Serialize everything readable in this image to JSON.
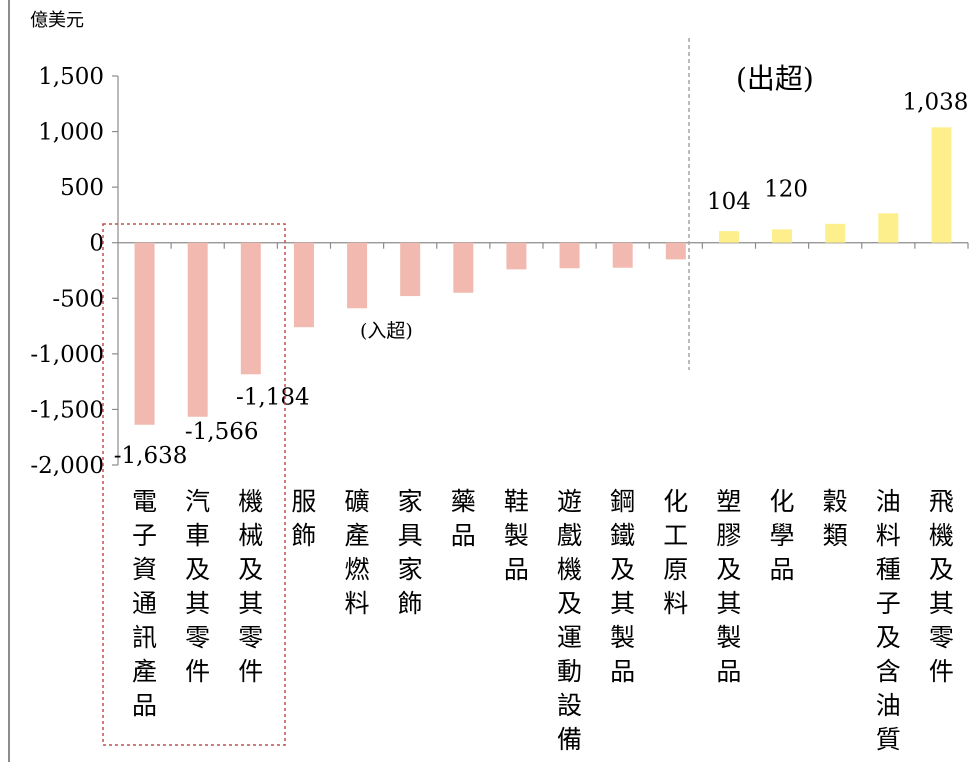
{
  "chart_data": {
    "type": "bar",
    "ylabel": "億美元",
    "ylim": [
      -2000,
      1500
    ],
    "yticks": [
      1500,
      1000,
      500,
      0,
      -500,
      -1000,
      -1500,
      -2000
    ],
    "ytick_labels": [
      "1,500",
      "1,000",
      "500",
      "0",
      "-500",
      "-1,000",
      "-1,500",
      "-2,000"
    ],
    "grid": false,
    "categories": [
      "電子資通訊產品",
      "汽車及其零件",
      "機械及其零件",
      "服飾",
      "礦產燃料",
      "家具家飾",
      "藥品",
      "鞋製品",
      "遊戲機及運動設備",
      "鋼鐵及其製品",
      "化工原料",
      "塑膠及其製品",
      "化學品",
      "穀類",
      "油料種子及含油質",
      "飛機及其零件"
    ],
    "values": [
      -1638,
      -1566,
      -1184,
      -760,
      -590,
      -480,
      -450,
      -240,
      -230,
      -225,
      -150,
      104,
      120,
      170,
      265,
      1038
    ],
    "data_labels": [
      "-1,638",
      "-1,566",
      "-1,184",
      "",
      "",
      "",
      "",
      "",
      "",
      "",
      "",
      "104",
      "120",
      "",
      "",
      "1,038"
    ],
    "annotations": {
      "deficit": "(入超)",
      "surplus": "(出超)"
    },
    "colors": {
      "deficit": "#f2b9b0",
      "surplus": "#fcef8c",
      "axis": "#8c8c8c",
      "highlight_box": "#c0504d",
      "divider": "#a6a6a6"
    }
  }
}
